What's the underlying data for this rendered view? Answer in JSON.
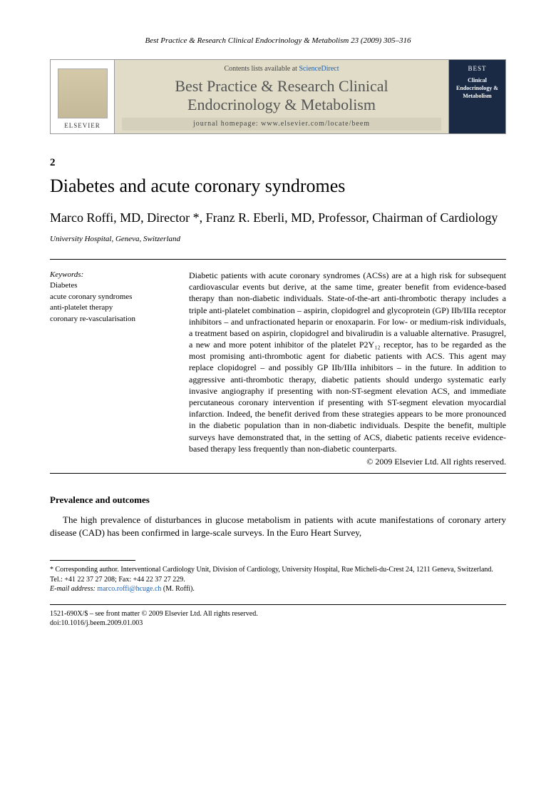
{
  "header": {
    "citation": "Best Practice & Research Clinical Endocrinology & Metabolism 23 (2009) 305–316"
  },
  "banner": {
    "publisher": "ELSEVIER",
    "contents_prefix": "Contents lists available at ",
    "contents_link": "ScienceDirect",
    "journal_title_l1": "Best Practice & Research Clinical",
    "journal_title_l2": "Endocrinology & Metabolism",
    "homepage_label": "journal homepage: ",
    "homepage_url": "www.elsevier.com/locate/beem",
    "cover_top": "BEST",
    "cover_mid": "Clinical Endocrinology & Metabolism"
  },
  "article": {
    "number": "2",
    "title": "Diabetes and acute coronary syndromes",
    "authors": "Marco Roffi, MD, Director *, Franz R. Eberli, MD, Professor, Chairman of Cardiology",
    "affiliation": "University Hospital, Geneva, Switzerland"
  },
  "keywords": {
    "heading": "Keywords:",
    "items": [
      "Diabetes",
      "acute coronary syndromes",
      "anti-platelet therapy",
      "coronary re-vascularisation"
    ]
  },
  "abstract": {
    "text": "Diabetic patients with acute coronary syndromes (ACSs) are at a high risk for subsequent cardiovascular events but derive, at the same time, greater benefit from evidence-based therapy than non-diabetic individuals. State-of-the-art anti-thrombotic therapy includes a triple anti-platelet combination – aspirin, clopidogrel and glycoprotein (GP) IIb/IIIa receptor inhibitors – and unfractionated heparin or enoxaparin. For low- or medium-risk individuals, a treatment based on aspirin, clopidogrel and bivalirudin is a valuable alternative. Prasugrel, a new and more potent inhibitor of the platelet P2Y₁₂ receptor, has to be regarded as the most promising anti-thrombotic agent for diabetic patients with ACS. This agent may replace clopidogrel – and possibly GP IIb/IIIa inhibitors – in the future. In addition to aggressive anti-thrombotic therapy, diabetic patients should undergo systematic early invasive angiography if presenting with non-ST-segment elevation ACS, and immediate percutaneous coronary intervention if presenting with ST-segment elevation myocardial infarction. Indeed, the benefit derived from these strategies appears to be more pronounced in the diabetic population than in non-diabetic individuals. Despite the benefit, multiple surveys have demonstrated that, in the setting of ACS, diabetic patients receive evidence-based therapy less frequently than non-diabetic counterparts.",
    "copyright": "© 2009 Elsevier Ltd. All rights reserved."
  },
  "section1": {
    "heading": "Prevalence and outcomes",
    "para": "The high prevalence of disturbances in glucose metabolism in patients with acute manifestations of coronary artery disease (CAD) has been confirmed in large-scale surveys. In the Euro Heart Survey,"
  },
  "footnote": {
    "corr": "* Corresponding author. Interventional Cardiology Unit, Division of Cardiology, University Hospital, Rue Micheli-du-Crest 24, 1211 Geneva, Switzerland. Tel.: +41 22 37 27 208; Fax: +44 22 37 27 229.",
    "email_label": "E-mail address: ",
    "email": "marco.roffi@hcuge.ch",
    "email_suffix": " (M. Roffi)."
  },
  "bottom": {
    "line1": "1521-690X/$ – see front matter © 2009 Elsevier Ltd. All rights reserved.",
    "line2": "doi:10.1016/j.beem.2009.01.003"
  },
  "colors": {
    "banner_bg": "#e0dcc8",
    "cover_bg": "#1a2a45",
    "link": "#1a5fb4"
  }
}
